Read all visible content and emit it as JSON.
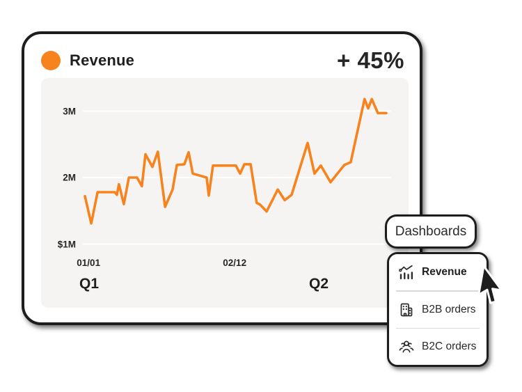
{
  "card": {
    "title": "Revenue",
    "delta": "+ 45%",
    "accent_color": "#F6831D"
  },
  "chart_data": {
    "type": "line",
    "title": "Revenue",
    "background": "#F5F4F2",
    "gridline_color": "#FFFFFF",
    "grid": true,
    "legend_position": "none",
    "ylim": [
      0.5,
      3.5
    ],
    "y_ticks": [
      {
        "label": "3M",
        "value": 3
      },
      {
        "label": "2M",
        "value": 2
      },
      {
        "label": "$1M",
        "value": 1
      }
    ],
    "x_ticks": [
      {
        "label": "01/01",
        "x": 0.012
      },
      {
        "label": "02/12",
        "x": 0.497
      }
    ],
    "quarter_labels": [
      {
        "label": "Q1",
        "x": 0.014
      },
      {
        "label": "Q2",
        "x": 0.776
      }
    ],
    "series": [
      {
        "name": "Revenue",
        "color": "#F6831D",
        "unit": "M",
        "points": [
          [
            0.0,
            1.72
          ],
          [
            0.021,
            1.31
          ],
          [
            0.042,
            1.78
          ],
          [
            0.099,
            1.78
          ],
          [
            0.106,
            1.74
          ],
          [
            0.113,
            1.9
          ],
          [
            0.129,
            1.6
          ],
          [
            0.146,
            2.0
          ],
          [
            0.173,
            2.0
          ],
          [
            0.189,
            1.87
          ],
          [
            0.201,
            2.35
          ],
          [
            0.224,
            2.16
          ],
          [
            0.242,
            2.39
          ],
          [
            0.266,
            1.56
          ],
          [
            0.291,
            1.82
          ],
          [
            0.305,
            2.19
          ],
          [
            0.33,
            2.2
          ],
          [
            0.344,
            2.38
          ],
          [
            0.358,
            2.06
          ],
          [
            0.404,
            2.0
          ],
          [
            0.411,
            1.73
          ],
          [
            0.425,
            2.18
          ],
          [
            0.501,
            2.18
          ],
          [
            0.515,
            2.06
          ],
          [
            0.529,
            2.2
          ],
          [
            0.55,
            2.2
          ],
          [
            0.57,
            1.62
          ],
          [
            0.582,
            1.59
          ],
          [
            0.603,
            1.49
          ],
          [
            0.64,
            1.82
          ],
          [
            0.663,
            1.66
          ],
          [
            0.686,
            1.74
          ],
          [
            0.739,
            2.52
          ],
          [
            0.762,
            2.06
          ],
          [
            0.783,
            2.18
          ],
          [
            0.815,
            1.93
          ],
          [
            0.861,
            2.19
          ],
          [
            0.882,
            2.23
          ],
          [
            0.928,
            3.18
          ],
          [
            0.94,
            3.04
          ],
          [
            0.952,
            3.18
          ],
          [
            0.972,
            2.97
          ],
          [
            1.0,
            2.97
          ]
        ]
      }
    ]
  },
  "dropdown": {
    "trigger_label": "Dashboards",
    "items": [
      {
        "label": "Revenue",
        "icon": "bar-chart-trend-icon",
        "active": true
      },
      {
        "label": "B2B orders",
        "icon": "building-icon",
        "active": false
      },
      {
        "label": "B2C orders",
        "icon": "people-group-icon",
        "active": false
      }
    ]
  },
  "cursor": {
    "type": "arrow-pointer"
  }
}
